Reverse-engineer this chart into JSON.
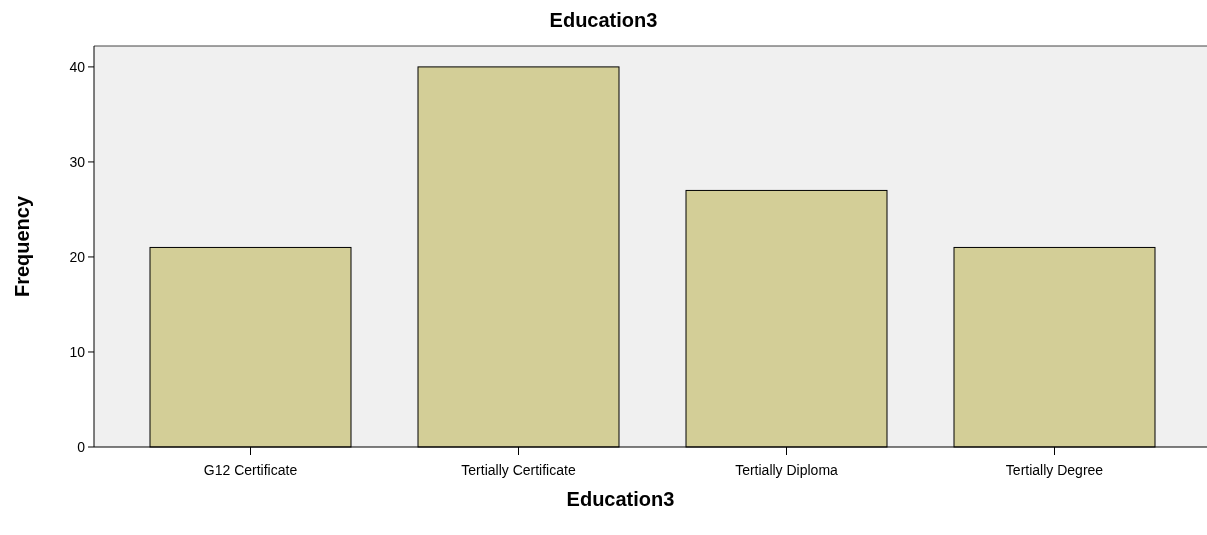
{
  "chart_data": {
    "type": "bar",
    "title": "Education3",
    "xlabel": "Education3",
    "ylabel": "Frequency",
    "categories": [
      "G12 Certificate",
      "Tertially Certificate",
      "Tertially Diploma",
      "Tertially Degree"
    ],
    "values": [
      21,
      40,
      27,
      21
    ],
    "color": "#d3ce97",
    "ylim": [
      0,
      42.2
    ],
    "yticks": [
      0,
      10,
      20,
      30,
      40
    ],
    "grid": false
  }
}
